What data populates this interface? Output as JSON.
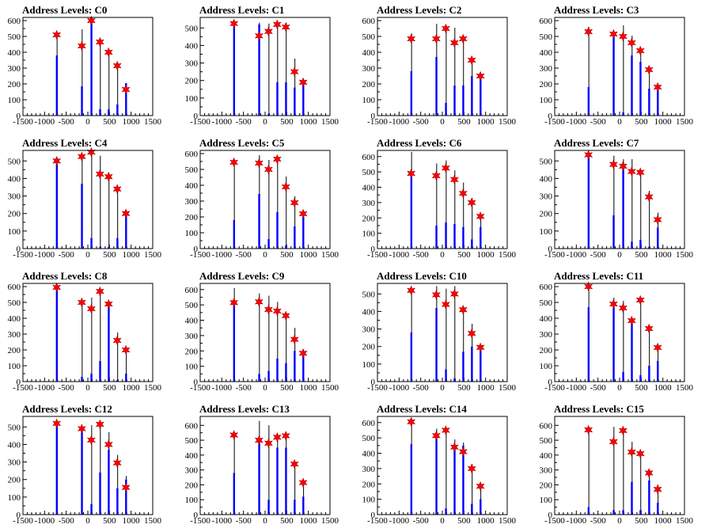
{
  "colors": {
    "histogram": "#0000ff",
    "marker": "#ff0000",
    "axis": "#000000",
    "spike": "#000000"
  },
  "xaxis": {
    "range": [
      -1500,
      1500
    ],
    "ticks": [
      -1500,
      -1000,
      -500,
      0,
      500,
      1000,
      1500
    ],
    "tick_labels": [
      "-1500",
      "-1000",
      "-500",
      "0",
      "500",
      "1000",
      "1500"
    ]
  },
  "chart_data": [
    {
      "type": "bar",
      "title": "Address Levels: C0",
      "ylim": [
        0,
        620
      ],
      "yticks": [
        0,
        100,
        200,
        300,
        400,
        500,
        600
      ],
      "ytick_labels": [
        "0",
        "100",
        "200",
        "300",
        "400",
        "500",
        "600"
      ],
      "x": [
        -720,
        -140,
        80,
        280,
        480,
        680,
        880
      ],
      "markers": [
        510,
        440,
        600,
        465,
        400,
        315,
        165
      ],
      "bars": [
        380,
        185,
        590,
        40,
        40,
        70,
        205
      ],
      "spikes": [
        510,
        545,
        600,
        470,
        405,
        320,
        205
      ]
    },
    {
      "type": "bar",
      "title": "Address Levels: C1",
      "ylim": [
        0,
        560
      ],
      "yticks": [
        0,
        100,
        200,
        300,
        400,
        500
      ],
      "ytick_labels": [
        "0",
        "100",
        "200",
        "300",
        "400",
        "500"
      ],
      "x": [
        -720,
        -140,
        80,
        280,
        480,
        680,
        880
      ],
      "markers": [
        525,
        455,
        480,
        520,
        505,
        250,
        190
      ],
      "bars": [
        510,
        520,
        10,
        190,
        190,
        160,
        190
      ],
      "spikes": [
        530,
        530,
        525,
        535,
        530,
        325,
        190
      ]
    },
    {
      "type": "bar",
      "title": "Address Levels: C2",
      "ylim": [
        0,
        620
      ],
      "yticks": [
        0,
        100,
        200,
        300,
        400,
        500,
        600
      ],
      "ytick_labels": [
        "0",
        "100",
        "200",
        "300",
        "400",
        "500",
        "600"
      ],
      "x": [
        -720,
        -140,
        80,
        280,
        480,
        680,
        880
      ],
      "markers": [
        485,
        485,
        550,
        460,
        485,
        350,
        250
      ],
      "bars": [
        280,
        370,
        80,
        190,
        190,
        250,
        240
      ],
      "spikes": [
        520,
        580,
        570,
        555,
        500,
        355,
        255
      ]
    },
    {
      "type": "bar",
      "title": "Address Levels: C3",
      "ylim": [
        0,
        620
      ],
      "yticks": [
        0,
        100,
        200,
        300,
        400,
        500,
        600
      ],
      "ytick_labels": [
        "0",
        "100",
        "200",
        "300",
        "400",
        "500",
        "600"
      ],
      "x": [
        -720,
        -140,
        80,
        280,
        480,
        680,
        880
      ],
      "markers": [
        530,
        515,
        500,
        460,
        410,
        290,
        180
      ],
      "bars": [
        180,
        500,
        20,
        380,
        340,
        170,
        190
      ],
      "spikes": [
        560,
        530,
        570,
        505,
        420,
        300,
        200
      ]
    },
    {
      "type": "bar",
      "title": "Address Levels: C4",
      "ylim": [
        0,
        560
      ],
      "yticks": [
        0,
        100,
        200,
        300,
        400,
        500
      ],
      "ytick_labels": [
        "0",
        "100",
        "200",
        "300",
        "400",
        "500"
      ],
      "x": [
        -720,
        -140,
        80,
        280,
        480,
        680,
        880
      ],
      "markers": [
        500,
        525,
        550,
        425,
        410,
        340,
        200
      ],
      "bars": [
        480,
        370,
        60,
        10,
        10,
        60,
        200
      ],
      "spikes": [
        520,
        530,
        560,
        530,
        430,
        345,
        210
      ]
    },
    {
      "type": "bar",
      "title": "Address Levels: C5",
      "ylim": [
        0,
        620
      ],
      "yticks": [
        0,
        100,
        200,
        300,
        400,
        500,
        600
      ],
      "ytick_labels": [
        "0",
        "100",
        "200",
        "300",
        "400",
        "500",
        "600"
      ],
      "x": [
        -720,
        -140,
        80,
        280,
        480,
        680,
        880
      ],
      "markers": [
        545,
        540,
        500,
        565,
        390,
        290,
        220
      ],
      "bars": [
        180,
        345,
        60,
        230,
        20,
        140,
        200
      ],
      "spikes": [
        560,
        590,
        560,
        570,
        455,
        330,
        230
      ]
    },
    {
      "type": "bar",
      "title": "Address Levels: C6",
      "ylim": [
        0,
        640
      ],
      "yticks": [
        0,
        100,
        200,
        300,
        400,
        500,
        600
      ],
      "ytick_labels": [
        "0",
        "100",
        "200",
        "300",
        "400",
        "500",
        "600"
      ],
      "x": [
        -720,
        -140,
        80,
        280,
        480,
        680,
        880
      ],
      "markers": [
        490,
        475,
        525,
        450,
        360,
        300,
        210
      ],
      "bars": [
        480,
        150,
        170,
        160,
        140,
        60,
        140
      ],
      "spikes": [
        630,
        555,
        575,
        510,
        430,
        330,
        220
      ]
    },
    {
      "type": "bar",
      "title": "Address Levels: C7",
      "ylim": [
        0,
        560
      ],
      "yticks": [
        0,
        100,
        200,
        300,
        400,
        500
      ],
      "ytick_labels": [
        "0",
        "100",
        "200",
        "300",
        "400",
        "500"
      ],
      "x": [
        -720,
        -140,
        80,
        280,
        480,
        680,
        880
      ],
      "markers": [
        535,
        480,
        470,
        440,
        435,
        295,
        165
      ],
      "bars": [
        530,
        190,
        490,
        40,
        50,
        10,
        120
      ],
      "spikes": [
        545,
        530,
        510,
        510,
        440,
        330,
        205
      ]
    },
    {
      "type": "bar",
      "title": "Address Levels: C8",
      "ylim": [
        0,
        620
      ],
      "yticks": [
        0,
        100,
        200,
        300,
        400,
        500,
        600
      ],
      "ytick_labels": [
        "0",
        "100",
        "200",
        "300",
        "400",
        "500",
        "600"
      ],
      "x": [
        -720,
        -140,
        80,
        280,
        480,
        680,
        880
      ],
      "markers": [
        595,
        500,
        460,
        570,
        490,
        260,
        200
      ],
      "bars": [
        580,
        30,
        50,
        130,
        500,
        10,
        50
      ],
      "spikes": [
        600,
        510,
        530,
        580,
        495,
        310,
        200
      ]
    },
    {
      "type": "bar",
      "title": "Address Levels: C9",
      "ylim": [
        0,
        640
      ],
      "yticks": [
        0,
        100,
        200,
        300,
        400,
        500,
        600
      ],
      "ytick_labels": [
        "0",
        "100",
        "200",
        "300",
        "400",
        "500",
        "600"
      ],
      "x": [
        -720,
        -140,
        80,
        280,
        480,
        680,
        880
      ],
      "markers": [
        515,
        520,
        470,
        460,
        430,
        275,
        185
      ],
      "bars": [
        520,
        50,
        70,
        150,
        120,
        200,
        180
      ],
      "spikes": [
        610,
        575,
        560,
        520,
        450,
        350,
        200
      ]
    },
    {
      "type": "bar",
      "title": "Address Levels: C10",
      "ylim": [
        0,
        560
      ],
      "yticks": [
        0,
        100,
        200,
        300,
        400,
        500
      ],
      "ytick_labels": [
        "0",
        "100",
        "200",
        "300",
        "400",
        "500"
      ],
      "x": [
        -720,
        -140,
        80,
        280,
        480,
        680,
        880
      ],
      "markers": [
        520,
        495,
        440,
        500,
        410,
        275,
        195
      ],
      "bars": [
        280,
        420,
        70,
        20,
        170,
        200,
        200
      ],
      "spikes": [
        535,
        545,
        530,
        545,
        425,
        330,
        200
      ]
    },
    {
      "type": "bar",
      "title": "Address Levels: C11",
      "ylim": [
        0,
        620
      ],
      "yticks": [
        0,
        100,
        200,
        300,
        400,
        500,
        600
      ],
      "ytick_labels": [
        "0",
        "100",
        "200",
        "300",
        "400",
        "500",
        "600"
      ],
      "x": [
        -720,
        -140,
        80,
        280,
        480,
        680,
        880
      ],
      "markers": [
        600,
        490,
        465,
        385,
        515,
        335,
        215
      ],
      "bars": [
        470,
        470,
        60,
        370,
        40,
        100,
        130
      ],
      "spikes": [
        610,
        530,
        510,
        395,
        525,
        340,
        220
      ]
    },
    {
      "type": "bar",
      "title": "Address Levels: C12",
      "ylim": [
        0,
        560
      ],
      "yticks": [
        0,
        100,
        200,
        300,
        400,
        500
      ],
      "ytick_labels": [
        "0",
        "100",
        "200",
        "300",
        "400",
        "500"
      ],
      "x": [
        -720,
        -140,
        80,
        280,
        480,
        680,
        880
      ],
      "markers": [
        520,
        490,
        425,
        515,
        400,
        295,
        155
      ],
      "bars": [
        520,
        480,
        60,
        240,
        370,
        150,
        200
      ],
      "spikes": [
        530,
        505,
        510,
        530,
        470,
        340,
        220
      ]
    },
    {
      "type": "bar",
      "title": "Address Levels: C13",
      "ylim": [
        0,
        660
      ],
      "yticks": [
        0,
        100,
        200,
        300,
        400,
        500,
        600
      ],
      "ytick_labels": [
        "0",
        "100",
        "200",
        "300",
        "400",
        "500",
        "600"
      ],
      "x": [
        -720,
        -140,
        80,
        280,
        480,
        680,
        880
      ],
      "markers": [
        535,
        500,
        480,
        520,
        530,
        340,
        215
      ],
      "bars": [
        280,
        500,
        100,
        450,
        450,
        100,
        120
      ],
      "spikes": [
        550,
        630,
        600,
        545,
        540,
        350,
        230
      ]
    },
    {
      "type": "bar",
      "title": "Address Levels: C14",
      "ylim": [
        0,
        640
      ],
      "yticks": [
        0,
        100,
        200,
        300,
        400,
        500,
        600
      ],
      "ytick_labels": [
        "0",
        "100",
        "200",
        "300",
        "400",
        "500",
        "600"
      ],
      "x": [
        -720,
        -140,
        80,
        280,
        480,
        680,
        880
      ],
      "markers": [
        605,
        515,
        550,
        440,
        410,
        300,
        185
      ],
      "bars": [
        460,
        520,
        40,
        450,
        450,
        70,
        100
      ],
      "spikes": [
        620,
        560,
        565,
        490,
        470,
        330,
        200
      ]
    },
    {
      "type": "bar",
      "title": "Address Levels: C15",
      "ylim": [
        0,
        660
      ],
      "yticks": [
        0,
        100,
        200,
        300,
        400,
        500,
        600
      ],
      "ytick_labels": [
        "0",
        "100",
        "200",
        "300",
        "400",
        "500",
        "600"
      ],
      "x": [
        -720,
        -140,
        80,
        280,
        480,
        680,
        880
      ],
      "markers": [
        570,
        490,
        565,
        420,
        410,
        280,
        170
      ],
      "bars": [
        50,
        30,
        30,
        220,
        30,
        230,
        80
      ],
      "spikes": [
        580,
        590,
        580,
        490,
        430,
        300,
        200
      ]
    }
  ]
}
